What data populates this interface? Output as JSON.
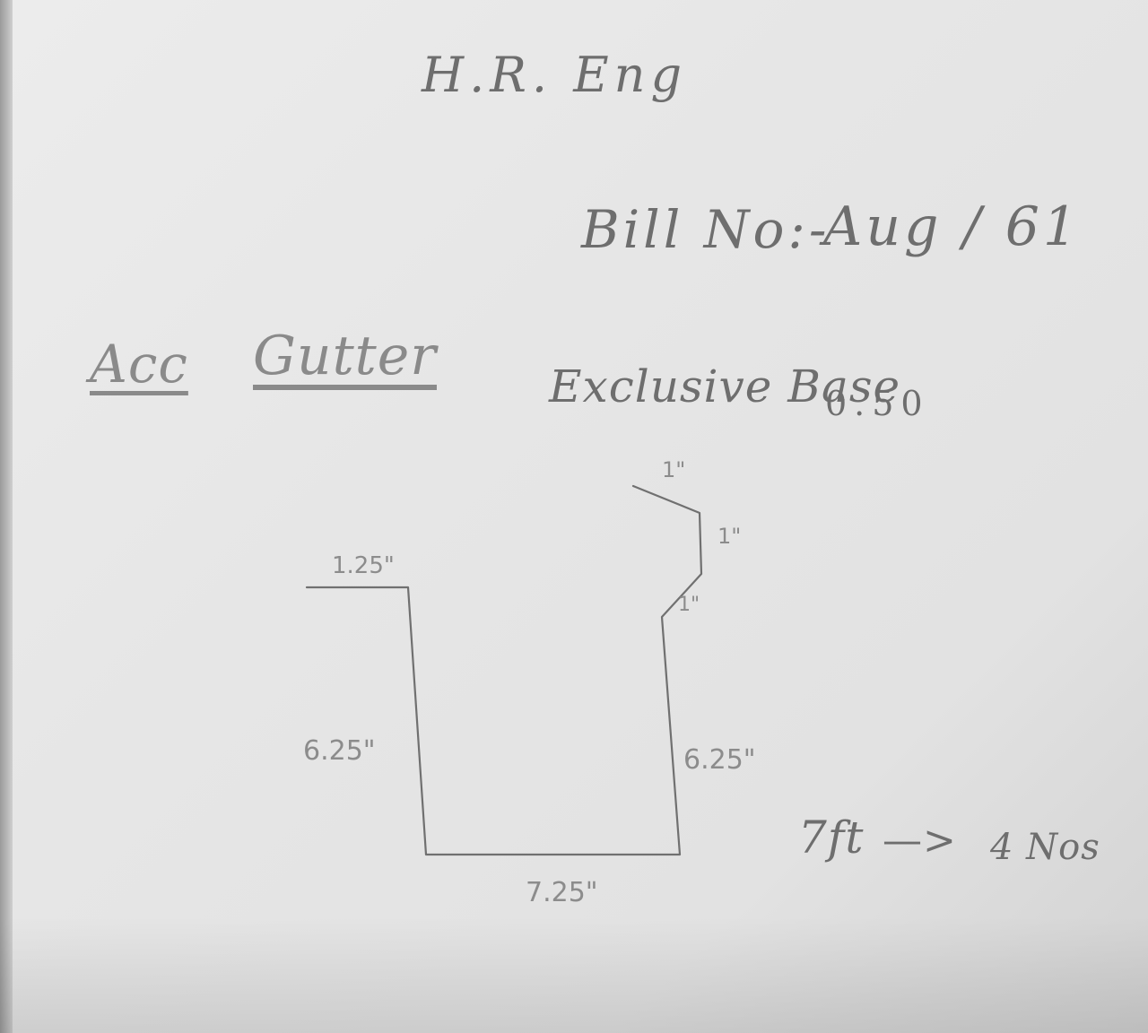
{
  "header": {
    "company": "H.R. Eng",
    "bill_label": "Bill No:-",
    "bill_number": "Aug / 61"
  },
  "item": {
    "account": "Acc",
    "product": "Gutter",
    "base_label": "Exclusive Base",
    "base_value": "0.50"
  },
  "profile_dimensions": {
    "top_flange": "1.25\"",
    "left_side": "6.25\"",
    "bottom": "7.25\"",
    "right_side": "6.25\"",
    "lip_1": "1\"",
    "lip_2": "1\"",
    "lip_3": "1\""
  },
  "order_note": {
    "length": "7ft",
    "arrow": "—>",
    "quantity": "4 Nos"
  },
  "colors": {
    "paper": "#e6e6e6",
    "pencil": "#6e6e6e"
  }
}
